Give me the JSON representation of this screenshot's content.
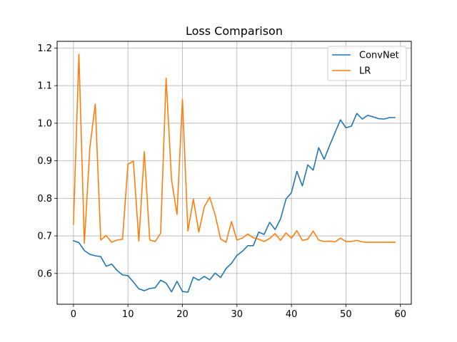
{
  "chart_data": {
    "type": "line",
    "title": "Loss Comparison",
    "xlabel": "",
    "ylabel": "",
    "xlim": [
      -3,
      62
    ],
    "ylim": [
      0.518,
      1.218
    ],
    "x_ticks": [
      0,
      10,
      20,
      30,
      40,
      50,
      60
    ],
    "y_ticks": [
      0.6,
      0.7,
      0.8,
      0.9,
      1.0,
      1.1,
      1.2
    ],
    "y_tick_labels": [
      "0.6",
      "0.7",
      "0.8",
      "0.9",
      "1.0",
      "1.1",
      "1.2"
    ],
    "grid": true,
    "legend_position": "top-right",
    "series": [
      {
        "name": "ConvNet",
        "color": "#1f77b4",
        "x": [
          0,
          1,
          2,
          3,
          4,
          5,
          6,
          7,
          8,
          9,
          10,
          11,
          12,
          13,
          14,
          15,
          16,
          17,
          18,
          19,
          20,
          21,
          22,
          23,
          24,
          25,
          26,
          27,
          28,
          29,
          30,
          31,
          32,
          33,
          34,
          35,
          36,
          37,
          38,
          39,
          40,
          41,
          42,
          43,
          44,
          45,
          46,
          47,
          48,
          49,
          50,
          51,
          52,
          53,
          54,
          55,
          56,
          57,
          58,
          59
        ],
        "values": [
          0.687,
          0.682,
          0.661,
          0.651,
          0.647,
          0.645,
          0.619,
          0.625,
          0.608,
          0.596,
          0.594,
          0.577,
          0.559,
          0.554,
          0.56,
          0.562,
          0.582,
          0.574,
          0.551,
          0.579,
          0.552,
          0.55,
          0.59,
          0.582,
          0.592,
          0.583,
          0.601,
          0.589,
          0.613,
          0.627,
          0.648,
          0.659,
          0.674,
          0.674,
          0.71,
          0.704,
          0.736,
          0.717,
          0.745,
          0.798,
          0.815,
          0.872,
          0.833,
          0.889,
          0.875,
          0.935,
          0.904,
          0.94,
          0.975,
          1.009,
          0.988,
          0.992,
          1.026,
          1.011,
          1.021,
          1.017,
          1.012,
          1.011,
          1.015,
          1.015
        ]
      },
      {
        "name": "LR",
        "color": "#ff7f0e",
        "x": [
          0,
          1,
          2,
          3,
          4,
          5,
          6,
          7,
          8,
          9,
          10,
          11,
          12,
          13,
          14,
          15,
          16,
          17,
          18,
          19,
          20,
          21,
          22,
          23,
          24,
          25,
          26,
          27,
          28,
          29,
          30,
          31,
          32,
          33,
          34,
          35,
          36,
          37,
          38,
          39,
          40,
          41,
          42,
          43,
          44,
          45,
          46,
          47,
          48,
          49,
          50,
          51,
          52,
          53,
          54,
          55,
          56,
          57,
          58,
          59
        ],
        "values": [
          0.731,
          1.184,
          0.68,
          0.934,
          1.051,
          0.689,
          0.701,
          0.683,
          0.689,
          0.691,
          0.891,
          0.899,
          0.686,
          0.924,
          0.689,
          0.685,
          0.707,
          1.12,
          0.849,
          0.757,
          1.063,
          0.713,
          0.798,
          0.71,
          0.777,
          0.803,
          0.756,
          0.692,
          0.683,
          0.738,
          0.689,
          0.694,
          0.705,
          0.695,
          0.691,
          0.685,
          0.693,
          0.706,
          0.688,
          0.708,
          0.694,
          0.714,
          0.688,
          0.691,
          0.713,
          0.689,
          0.685,
          0.686,
          0.684,
          0.694,
          0.685,
          0.685,
          0.688,
          0.684,
          0.683,
          0.683,
          0.683,
          0.683,
          0.683,
          0.683
        ]
      }
    ]
  }
}
